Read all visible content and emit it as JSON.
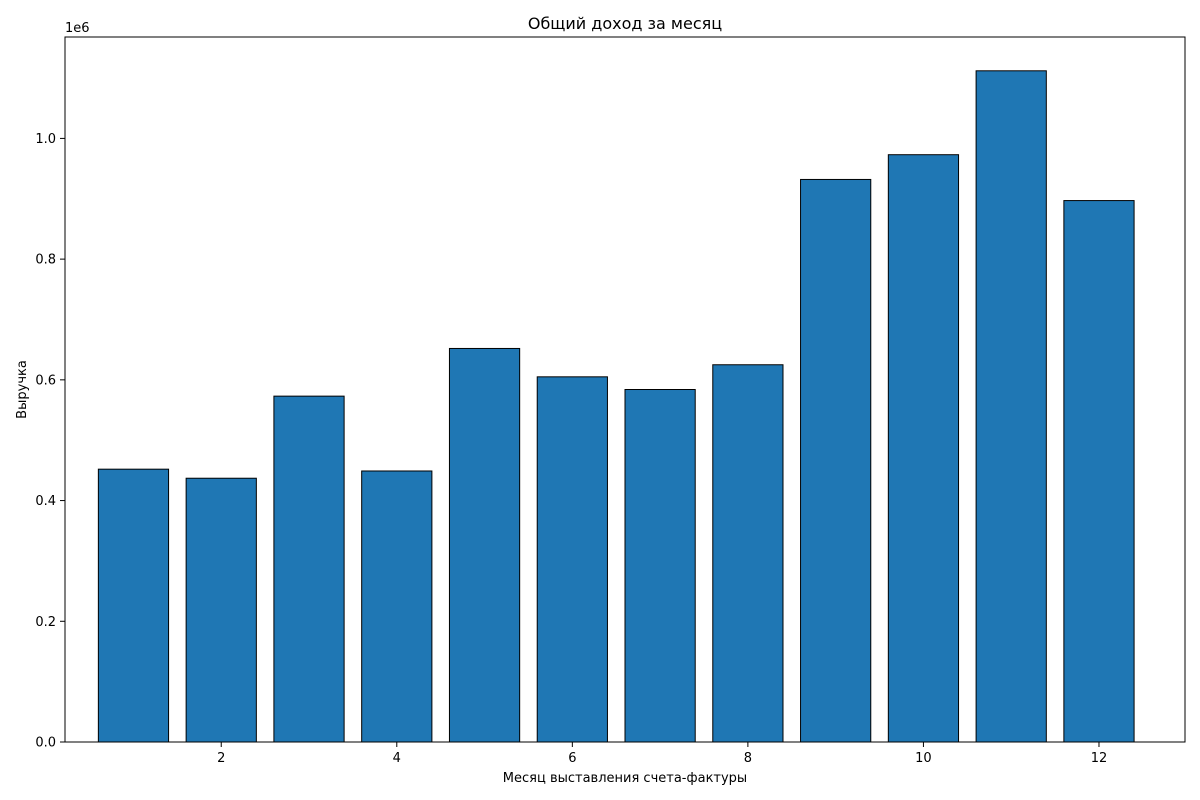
{
  "chart_data": {
    "type": "bar",
    "title": "Общий доход за месяц",
    "xlabel": "Месяц выставления счета-фактуры",
    "ylabel": "Выручка",
    "y_offset_label": "1e6",
    "x": [
      1,
      2,
      3,
      4,
      5,
      6,
      7,
      8,
      9,
      10,
      11,
      12
    ],
    "values": [
      452000,
      437000,
      573000,
      449000,
      652000,
      605000,
      584000,
      625000,
      932000,
      973000,
      1112000,
      897000
    ],
    "xlim": [
      0.22,
      12.98
    ],
    "ylim": [
      0,
      1168000
    ],
    "x_ticks": [
      2,
      4,
      6,
      8,
      10,
      12
    ],
    "x_tick_labels": [
      "2",
      "4",
      "6",
      "8",
      "10",
      "12"
    ],
    "y_ticks": [
      0,
      200000,
      400000,
      600000,
      800000,
      1000000
    ],
    "y_tick_labels": [
      "0.0",
      "0.2",
      "0.4",
      "0.6",
      "0.8",
      "1.0"
    ],
    "bar_color": "#1f77b4",
    "edge_color": "#000000",
    "grid": false
  }
}
